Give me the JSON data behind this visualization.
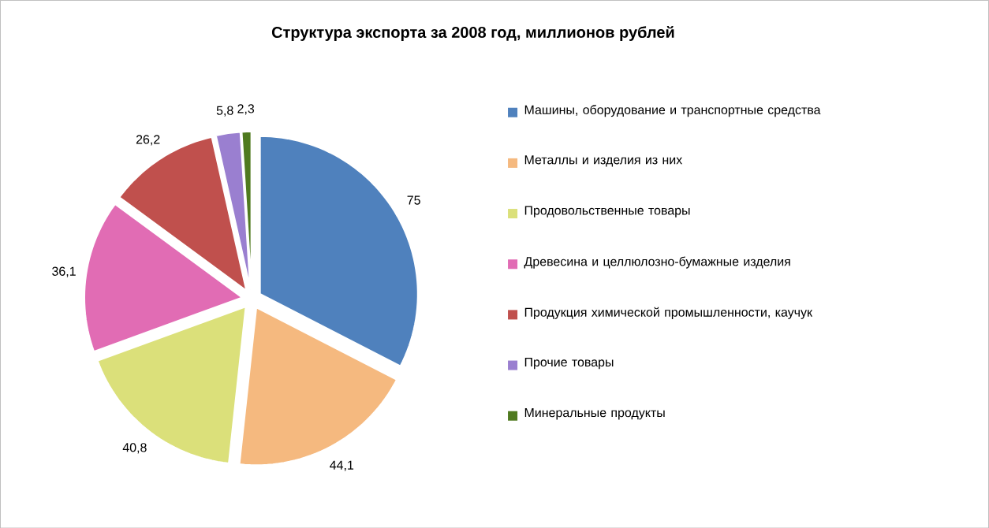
{
  "chart_data": {
    "type": "pie",
    "title": "Структура экспорта за 2008 год, миллионов рублей",
    "categories": [
      "Машины, оборудование и транспортные средства",
      "Металлы и изделия из них",
      "Продовольственные товары",
      "Древесина и целлюлозно-бумажные изделия",
      "Продукция химической промышленности, каучук",
      "Прочие товары",
      "Минеральные продукты"
    ],
    "values": [
      75,
      44.1,
      40.8,
      36.1,
      26.2,
      5.8,
      2.3
    ],
    "colors": [
      "#4f81bd",
      "#f5b97f",
      "#dbe07a",
      "#e16cb4",
      "#c0504d",
      "#9a7fd0",
      "#4f7a1f"
    ],
    "value_labels": [
      "75",
      "44,1",
      "40,8",
      "36,1",
      "26,2",
      "5,8",
      "2,3"
    ],
    "legend": "right"
  }
}
